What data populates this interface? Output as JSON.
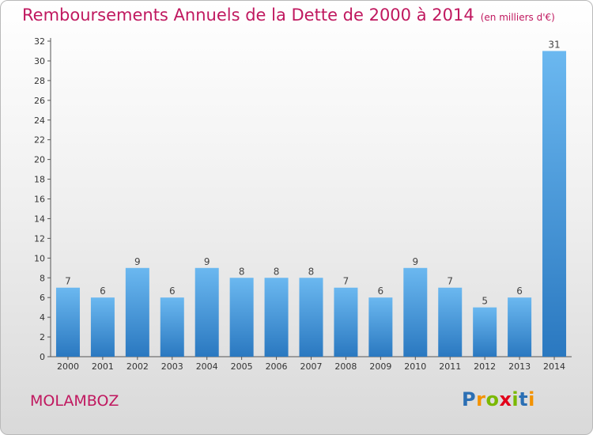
{
  "title": "Remboursements Annuels de la Dette de 2000 à 2014",
  "unit": "(en milliers d'€)",
  "commune": "MOLAMBOZ",
  "logo": {
    "text": "Proxiti",
    "letters": [
      {
        "ch": "P",
        "color": "#2b6fb4"
      },
      {
        "ch": "r",
        "color": "#f39200"
      },
      {
        "ch": "o",
        "color": "#7ab800"
      },
      {
        "ch": "x",
        "color": "#e2001a"
      },
      {
        "ch": "i",
        "color": "#7ab800"
      },
      {
        "ch": "t",
        "color": "#2b6fb4"
      },
      {
        "ch": "i",
        "color": "#f39200"
      }
    ]
  },
  "colors": {
    "bar": "#4a9fe0",
    "bar_light": "#6bb8f0",
    "bar_dark": "#2a78c0",
    "title": "#c0185f"
  },
  "chart_data": {
    "type": "bar",
    "categories": [
      "2000",
      "2001",
      "2002",
      "2003",
      "2004",
      "2005",
      "2006",
      "2007",
      "2008",
      "2009",
      "2010",
      "2011",
      "2012",
      "2013",
      "2014"
    ],
    "values": [
      7,
      6,
      9,
      6,
      9,
      8,
      8,
      8,
      7,
      6,
      9,
      7,
      5,
      6,
      31
    ],
    "ylim": [
      0,
      32
    ],
    "yticks": [
      0,
      2,
      4,
      6,
      8,
      10,
      12,
      14,
      16,
      18,
      20,
      22,
      24,
      26,
      28,
      30,
      32
    ],
    "grid": false,
    "data_labels": true
  }
}
